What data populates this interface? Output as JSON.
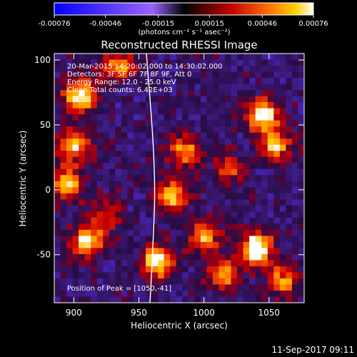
{
  "chart_data": {
    "type": "heatmap",
    "title": "Reconstructed RHESSI Image",
    "xlabel": "Heliocentric X (arcsec)",
    "ylabel": "Heliocentric Y (arcsec)",
    "xlim": [
      885,
      1077
    ],
    "ylim": [
      -87,
      105
    ],
    "x_ticks": [
      "900",
      "950",
      "1000",
      "1050"
    ],
    "y_ticks": [
      "100",
      "50",
      "0",
      "-50"
    ],
    "colorbar": {
      "ticks": [
        "-0.00076",
        "-0.00046",
        "-0.00015",
        "0.00015",
        "0.00046",
        "0.00076"
      ],
      "unit_label": "(photons cm⁻² s⁻¹ asec⁻²)",
      "range": [
        -0.00076,
        0.00076
      ]
    },
    "annotations": [
      "20-Mar-2015 14:20:02.000 to 14:30:02.000",
      "Detectors: 3F 5F 6F 7F 8F 9F, Att 0",
      "Energy Range: 12.0 - 25.0 keV",
      "Clean     Total counts: 6.42E+03"
    ],
    "peak_label": "Position of Peak = [1050,-41]",
    "timestamp": "11-Sep-2017 09:11",
    "grid_note": "41x41 pixel image, 4.7 arcsec pixels",
    "bright_sources": [
      {
        "x": 1040,
        "y": -45,
        "intensity": 1.0
      },
      {
        "x": 1045,
        "y": 58,
        "intensity": 0.85
      },
      {
        "x": 905,
        "y": 72,
        "intensity": 0.85
      },
      {
        "x": 900,
        "y": 35,
        "intensity": 0.7
      },
      {
        "x": 1055,
        "y": 35,
        "intensity": 0.65
      },
      {
        "x": 895,
        "y": 5,
        "intensity": 0.7
      },
      {
        "x": 910,
        "y": -40,
        "intensity": 0.75
      },
      {
        "x": 965,
        "y": -55,
        "intensity": 0.85
      },
      {
        "x": 975,
        "y": -5,
        "intensity": 0.7
      },
      {
        "x": 985,
        "y": 30,
        "intensity": 0.55
      },
      {
        "x": 1000,
        "y": -35,
        "intensity": 0.6
      },
      {
        "x": 1015,
        "y": -65,
        "intensity": 0.6
      },
      {
        "x": 1060,
        "y": -70,
        "intensity": 0.55
      },
      {
        "x": 935,
        "y": 95,
        "intensity": 0.6
      },
      {
        "x": 1020,
        "y": 15,
        "intensity": 0.4
      },
      {
        "x": 925,
        "y": -20,
        "intensity": 0.45
      }
    ]
  }
}
